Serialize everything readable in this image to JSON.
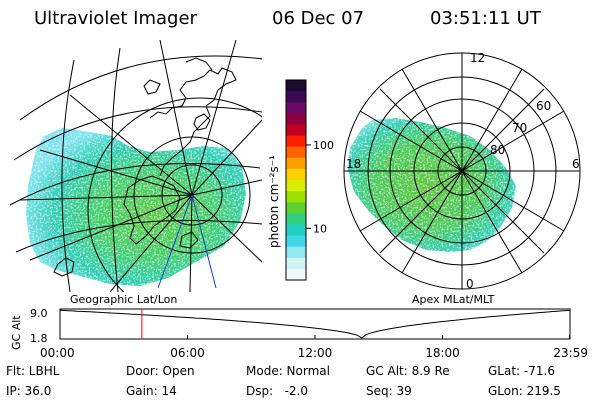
{
  "header": {
    "title": "Ultraviolet Imager",
    "date": "06 Dec 07",
    "time": "03:51:11 UT"
  },
  "colors": {
    "background": "#ffffff",
    "foreground": "#000000",
    "marker": "#ff0000",
    "track": "#1a3fd0"
  },
  "colorbar": {
    "unit_label": "photon cm⁻²s⁻¹",
    "ticks": [
      {
        "value": 100,
        "label": "100"
      },
      {
        "value": 10,
        "label": "10"
      }
    ],
    "log_range": [
      2.4,
      600
    ],
    "colors": [
      "#1a0a2e",
      "#3a0a55",
      "#6a0a6a",
      "#900040",
      "#c00020",
      "#ff2000",
      "#ff6000",
      "#ffa000",
      "#ffd000",
      "#d8f000",
      "#9ee000",
      "#60d030",
      "#30d080",
      "#20d0c0",
      "#40d8e8",
      "#90e8f0",
      "#d0f4f4",
      "#f0fafa"
    ]
  },
  "geographic_panel": {
    "label": "Geographic Lat/Lon"
  },
  "apex_panel": {
    "label": "Apex  MLat/MLT",
    "ring_labels": [
      "60",
      "70",
      "80"
    ],
    "mlt_labels": {
      "top": "12",
      "left": "18",
      "right": "6",
      "bottom": "0"
    }
  },
  "timeline": {
    "y_axis_label": "GC Alt",
    "y_ticks": [
      "9.0",
      "1.8"
    ],
    "y_range": [
      1.8,
      9.0
    ],
    "x_ticks": [
      "00:00",
      "06:00",
      "12:00",
      "18:00",
      "23:59"
    ],
    "x_tick_hours": [
      0,
      6,
      12,
      18,
      23.983
    ],
    "marker_hour": 3.853,
    "min_hour": 14.2
  },
  "info": {
    "row1": [
      {
        "key": "flt",
        "text": "Flt: LBHL"
      },
      {
        "key": "door",
        "text": "Door: Open"
      },
      {
        "key": "mode",
        "text": "Mode: Normal"
      },
      {
        "key": "gcalt",
        "text": "GC Alt: 8.9 Re"
      },
      {
        "key": "glat",
        "text": "GLat: -71.6"
      }
    ],
    "row2": [
      {
        "key": "ip",
        "text": "IP: 36.0"
      },
      {
        "key": "gain",
        "text": "Gain: 14"
      },
      {
        "key": "dsp",
        "text": "Dsp:   -2.0"
      },
      {
        "key": "seq",
        "text": "Seq: 39"
      },
      {
        "key": "glon",
        "text": "GLon: 219.5"
      }
    ]
  }
}
